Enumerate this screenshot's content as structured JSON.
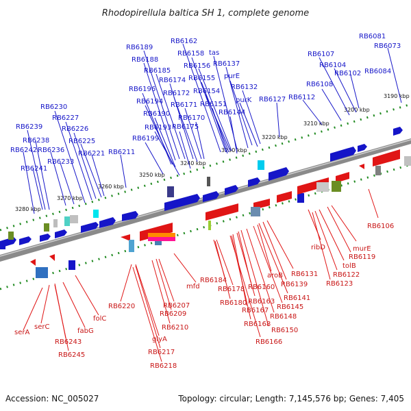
{
  "title": "Rhodopirellula baltica SH 1, complete genome",
  "footer": {
    "accession": "Accession: NC_005027",
    "summary": "Topology: circular; Length: 7,145,576 bp; Genes: 7,405"
  },
  "colors": {
    "forward": "#1515c8",
    "reverse": "#c81515",
    "backbone": "#8a8a8a",
    "tick": "#228b22"
  },
  "kbp_labels": [
    "3190 kbp",
    "3200 kbp",
    "3210 kbp",
    "3220 kbp",
    "3230 kbp",
    "3240 kbp",
    "3250 kbp",
    "3260 kbp",
    "3270 kbp",
    "3280 kbp"
  ],
  "forward_genes": [
    "RB6081",
    "RB6073",
    "RB6107",
    "RB6104",
    "RB6102",
    "RB6084",
    "RB6108",
    "RB6112",
    "RB6162",
    "RB6158",
    "tas",
    "RB6189",
    "RB6156",
    "RB6137",
    "RB6188",
    "purE",
    "RB6185",
    "RB6155",
    "RB6174",
    "RB6132",
    "RB6196",
    "RB6172",
    "RB6154",
    "purK",
    "RB6127",
    "RB6194",
    "RB6171",
    "RB6151",
    "RB6190",
    "RB6170",
    "RB6144",
    "RB6193",
    "RB6175",
    "RB6199",
    "RB6230",
    "RB6227",
    "RB6239",
    "RB6226",
    "RB6238",
    "RB6225",
    "RB6242",
    "RB6236",
    "RB6221",
    "RB6211",
    "RB6233",
    "RB6241"
  ],
  "reverse_genes": [
    "RB6106",
    "ribD",
    "murE",
    "RB6119",
    "tolB",
    "RB6122",
    "RB6123",
    "aroB",
    "RB6131",
    "RB6139",
    "RB6141",
    "RB6145",
    "RB6148",
    "RB6150",
    "RB6160",
    "RB6163",
    "RB6167",
    "RB6168",
    "RB6166",
    "RB6184",
    "RB6178",
    "RB6180",
    "mfd",
    "RB6207",
    "RB6209",
    "RB6210",
    "RB6220",
    "glyA",
    "RB6217",
    "RB6218",
    "folC",
    "fabG",
    "serC",
    "serA",
    "RB6243",
    "RB6245"
  ]
}
